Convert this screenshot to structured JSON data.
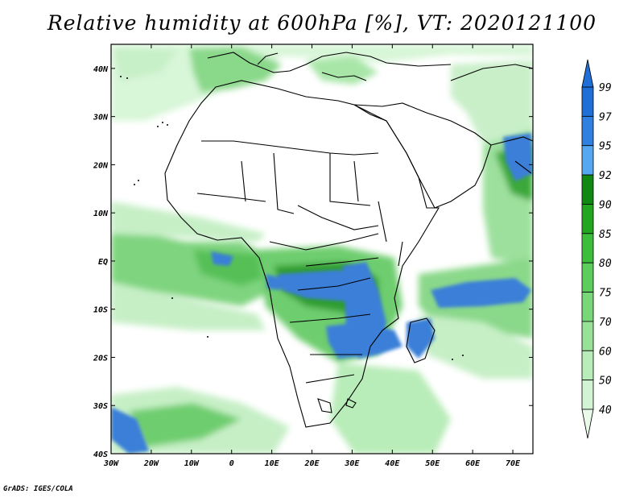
{
  "title": "Relative humidity at 600hPa [%], VT: 2020121100",
  "credit": "GrADS: IGES/COLA",
  "map": {
    "lon_range": [
      -30,
      75
    ],
    "lat_range": [
      -40,
      45
    ],
    "lon_labels": [
      "30W",
      "20W",
      "10W",
      "0",
      "10E",
      "20E",
      "30E",
      "40E",
      "50E",
      "60E",
      "70E"
    ],
    "lat_labels": [
      "40N",
      "30N",
      "20N",
      "10N",
      "EQ",
      "10S",
      "20S",
      "30S",
      "40S"
    ]
  },
  "colorbar": {
    "levels": [
      "99",
      "97",
      "95",
      "92",
      "90",
      "85",
      "80",
      "75",
      "70",
      "60",
      "50",
      "40"
    ],
    "colors": [
      "#1f6fd6",
      "#2f80e0",
      "#55a8f0",
      "#118811",
      "#22a622",
      "#3cbe3c",
      "#5ccc5c",
      "#78d878",
      "#98e298",
      "#b8ecb8",
      "#d2f4d2",
      "#eafaea"
    ]
  },
  "colors": {
    "moist_low": "#d8f6d8",
    "moist_mid": "#7ed67e",
    "moist_high": "#2aa52a",
    "saturated": "#3a7fd8"
  }
}
